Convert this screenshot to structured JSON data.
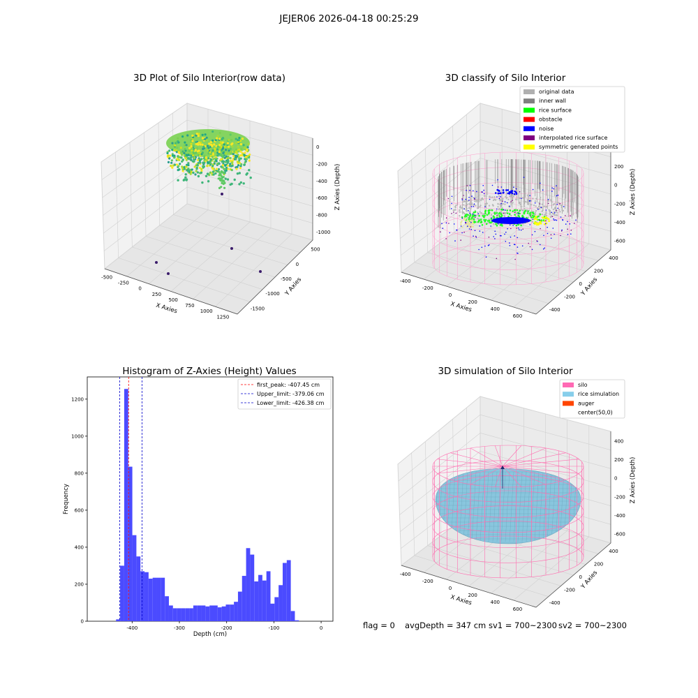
{
  "figure": {
    "suptitle": "JEJER06 2026-04-18 00:25:29",
    "footer": {
      "flag": "flag = 0",
      "avg_depth": "avgDepth = 347 cm",
      "sv1": "sv1 = 700~2300",
      "sv2": "sv2 = 700~2300"
    }
  },
  "panels": {
    "raw": {
      "title": "3D Plot of Silo Interior(row data)",
      "xlabel": "X Axies",
      "ylabel": "Y Axies",
      "zlabel": "Z Axies (Depth)",
      "xticks": [
        "-500",
        "-250",
        "0",
        "250",
        "500",
        "750",
        "1000",
        "1250"
      ],
      "yticks": [
        "500",
        "0",
        "-500",
        "-1000",
        "-1500"
      ],
      "zticks": [
        "0",
        "-200",
        "-400",
        "-600",
        "-800",
        "-1000"
      ]
    },
    "classify": {
      "title": "3D classify of Silo Interior",
      "xlabel": "X Axies",
      "ylabel": "Y Axies",
      "zlabel": "Z Axies (Depth)",
      "xticks": [
        "-400",
        "-200",
        "0",
        "200",
        "400",
        "600"
      ],
      "yticks": [
        "400",
        "200",
        "0",
        "-200",
        "-400"
      ],
      "zticks": [
        "400",
        "200",
        "0",
        "-200",
        "-400",
        "-600"
      ],
      "legend": [
        {
          "label": "original data",
          "color": "#b0b0b0"
        },
        {
          "label": "inner wall",
          "color": "#808080"
        },
        {
          "label": "rice surface",
          "color": "#00ff00"
        },
        {
          "label": "obstacle",
          "color": "#ff0000"
        },
        {
          "label": "noise",
          "color": "#0000ff"
        },
        {
          "label": "interpolated rice surface",
          "color": "#800080"
        },
        {
          "label": "symmetric generated points",
          "color": "#ffff00"
        }
      ]
    },
    "simulation": {
      "title": "3D simulation of Silo Interior",
      "xlabel": "X Axies",
      "ylabel": "Y Axies",
      "zlabel": "Z Axies (Depth)",
      "xticks": [
        "-400",
        "-200",
        "0",
        "200",
        "400",
        "600"
      ],
      "yticks": [
        "400",
        "200",
        "0",
        "-200",
        "-400"
      ],
      "zticks": [
        "400",
        "200",
        "0",
        "-200",
        "-400",
        "-600"
      ],
      "legend": [
        {
          "label": "silo",
          "color": "#ff69b4"
        },
        {
          "label": "rice simulation",
          "color": "#87ceeb"
        },
        {
          "label": "auger",
          "color": "#ff4500"
        },
        {
          "label": "center(50,0)",
          "color": "#ffffff"
        }
      ]
    }
  },
  "chart_data": {
    "type": "bar",
    "title": "Histogram of Z-Axies (Height) Values",
    "xlabel": "Depth (cm)",
    "ylabel": "Frequency",
    "xlim": [
      -495,
      25
    ],
    "ylim": [
      0,
      1320
    ],
    "xticks": [
      -400,
      -300,
      -200,
      -100,
      0
    ],
    "yticks": [
      0,
      200,
      400,
      600,
      800,
      1000,
      1200
    ],
    "bar_color": "#4b4bff",
    "bin_width": 8.6,
    "bin_starts": [
      -434,
      -425.4,
      -416.8,
      -408.2,
      -399.6,
      -391,
      -382.4,
      -373.8,
      -365.2,
      -356.6,
      -348,
      -339.4,
      -330.8,
      -322.2,
      -313.6,
      -305,
      -296.4,
      -287.8,
      -279.2,
      -270.6,
      -262,
      -253.4,
      -244.8,
      -236.2,
      -227.6,
      -219,
      -210.4,
      -201.8,
      -193.2,
      -184.6,
      -176,
      -167.4,
      -158.8,
      -150.2,
      -141.6,
      -133,
      -124.4,
      -115.8,
      -107.2,
      -98.6,
      -90,
      -81.4,
      -72.8,
      -64.2,
      -55.6,
      -47,
      -38.4,
      -29.8,
      -21.2,
      -12.6,
      -4
    ],
    "values": [
      10,
      300,
      1255,
      835,
      465,
      350,
      270,
      265,
      230,
      235,
      235,
      235,
      135,
      85,
      70,
      70,
      70,
      70,
      70,
      85,
      85,
      85,
      80,
      85,
      85,
      75,
      80,
      90,
      90,
      105,
      160,
      245,
      395,
      360,
      215,
      250,
      220,
      270,
      95,
      130,
      195,
      315,
      330,
      55,
      5,
      0,
      0,
      0,
      0,
      0,
      0
    ],
    "reference_lines": [
      {
        "label": "first_peak: -407.45 cm",
        "x": -407.45,
        "color": "#ff0000"
      },
      {
        "label": "Upper_limit: -379.06 cm",
        "x": -379.06,
        "color": "#0000cc"
      },
      {
        "label": "Lower_limit: -426.38 cm",
        "x": -426.38,
        "color": "#0000cc"
      }
    ],
    "legend_position": "top-right"
  }
}
